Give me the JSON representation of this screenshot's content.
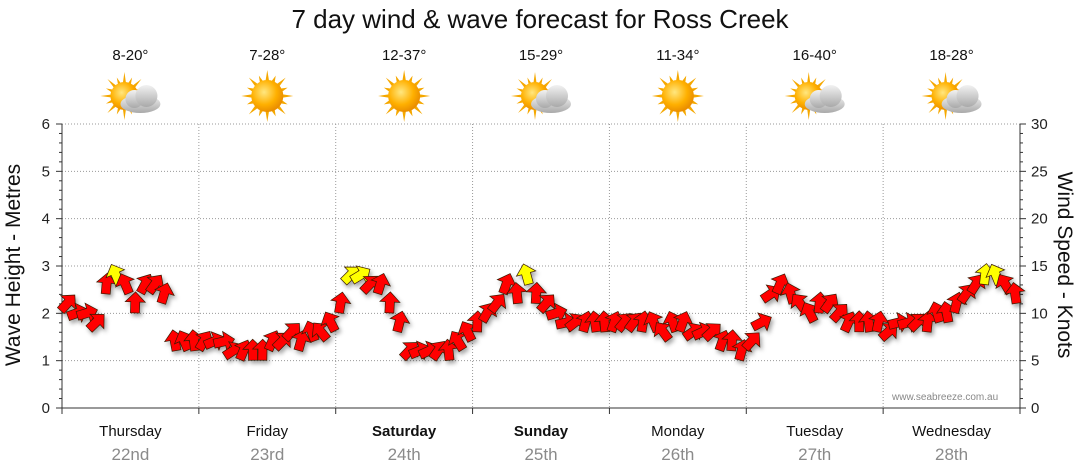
{
  "chart_data": {
    "type": "line",
    "title": "7 day wind & wave forecast for Ross Creek",
    "ylabel": "Wave Height - Metres",
    "y2label": "Wind Speed - Knots",
    "ylim": [
      0,
      6
    ],
    "y2lim": [
      0,
      30
    ],
    "yticks": [
      "0",
      "1",
      "2",
      "3",
      "4",
      "5",
      "6"
    ],
    "y2ticks": [
      "0",
      "5",
      "10",
      "15",
      "20",
      "25",
      "30"
    ],
    "grid": true,
    "credit": "www.seabreeze.com.au",
    "days": [
      {
        "day": "Thursday",
        "date": "22nd",
        "temp": "8-20°",
        "weather": "partly-cloudy-icon",
        "bold": false
      },
      {
        "day": "Friday",
        "date": "23rd",
        "temp": "7-28°",
        "weather": "sunny-icon",
        "bold": false
      },
      {
        "day": "Saturday",
        "date": "24th",
        "temp": "12-37°",
        "weather": "sunny-icon",
        "bold": true
      },
      {
        "day": "Sunday",
        "date": "25th",
        "temp": "15-29°",
        "weather": "partly-cloudy-icon",
        "bold": true
      },
      {
        "day": "Monday",
        "date": "26th",
        "temp": "11-34°",
        "weather": "sunny-icon",
        "bold": false
      },
      {
        "day": "Tuesday",
        "date": "27th",
        "temp": "16-40°",
        "weather": "partly-cloudy-icon",
        "bold": false
      },
      {
        "day": "Wednesday",
        "date": "28th",
        "temp": "18-28°",
        "weather": "partly-cloudy-icon",
        "bold": false
      }
    ],
    "series": [
      {
        "name": "Wind Speed",
        "units": "knots",
        "color_low": "#ff0000",
        "color_high": "#ffff00",
        "high_threshold_knots": 13.5,
        "x_days": [
          0.0,
          0.07,
          0.14,
          0.21,
          0.29,
          0.36,
          0.43,
          0.5,
          0.57,
          0.64,
          0.71,
          0.79,
          0.86,
          0.93,
          1.0,
          1.07,
          1.14,
          1.21,
          1.29,
          1.36,
          1.43,
          1.5,
          1.57,
          1.64,
          1.71,
          1.79,
          1.86,
          1.93,
          2.0,
          2.07,
          2.14,
          2.21,
          2.29,
          2.36,
          2.43,
          2.5,
          2.57,
          2.64,
          2.71,
          2.79,
          2.86,
          2.93,
          3.0,
          3.07,
          3.14,
          3.21,
          3.29,
          3.36,
          3.43,
          3.5,
          3.57,
          3.64,
          3.71,
          3.79,
          3.86,
          3.93,
          4.0,
          4.07,
          4.14,
          4.21,
          4.29,
          4.36,
          4.43,
          4.5,
          4.57,
          4.64,
          4.71,
          4.79,
          4.86,
          4.93,
          5.0,
          5.07,
          5.14,
          5.21,
          5.29,
          5.36,
          5.43,
          5.5,
          5.57,
          5.64,
          5.71,
          5.79,
          5.86,
          5.93,
          6.0,
          6.07,
          6.14,
          6.21,
          6.29,
          6.36,
          6.43,
          6.5,
          6.57,
          6.64,
          6.71,
          6.79,
          6.86,
          6.93
        ],
        "knots": [
          11,
          10,
          10,
          9,
          13,
          14,
          13,
          11,
          13,
          13,
          12,
          7,
          7,
          7,
          7,
          7,
          7,
          6,
          6,
          6,
          6,
          7,
          7,
          8,
          7,
          8,
          8,
          9,
          11,
          14,
          14,
          13,
          13,
          11,
          9,
          6,
          6,
          6,
          6,
          6,
          7,
          8,
          9,
          10,
          11,
          13,
          12,
          14,
          12,
          11,
          10,
          9,
          9,
          9,
          9,
          9,
          9,
          9,
          9,
          9,
          9,
          8,
          9,
          9,
          8,
          8,
          8,
          7,
          7,
          6,
          7,
          9,
          12,
          13,
          12,
          11,
          10,
          11,
          11,
          10,
          9,
          9,
          9,
          9,
          8,
          9,
          9,
          9,
          9,
          10,
          10,
          11,
          12,
          13,
          14,
          14,
          13,
          12
        ]
      },
      {
        "name": "Wave Height",
        "units": "metres",
        "color": "#ff0000",
        "x_days": [
          0.0,
          0.5,
          1.0,
          1.5,
          2.0,
          2.5,
          3.0,
          3.5,
          4.0,
          4.5,
          5.0,
          5.5,
          6.0,
          6.5,
          7.0
        ],
        "metres": [
          0.0,
          0.0,
          0.0,
          0.0,
          0.0,
          0.0,
          0.0,
          0.0,
          0.0,
          0.0,
          0.0,
          0.0,
          0.0,
          0.0,
          0.0
        ]
      }
    ]
  }
}
